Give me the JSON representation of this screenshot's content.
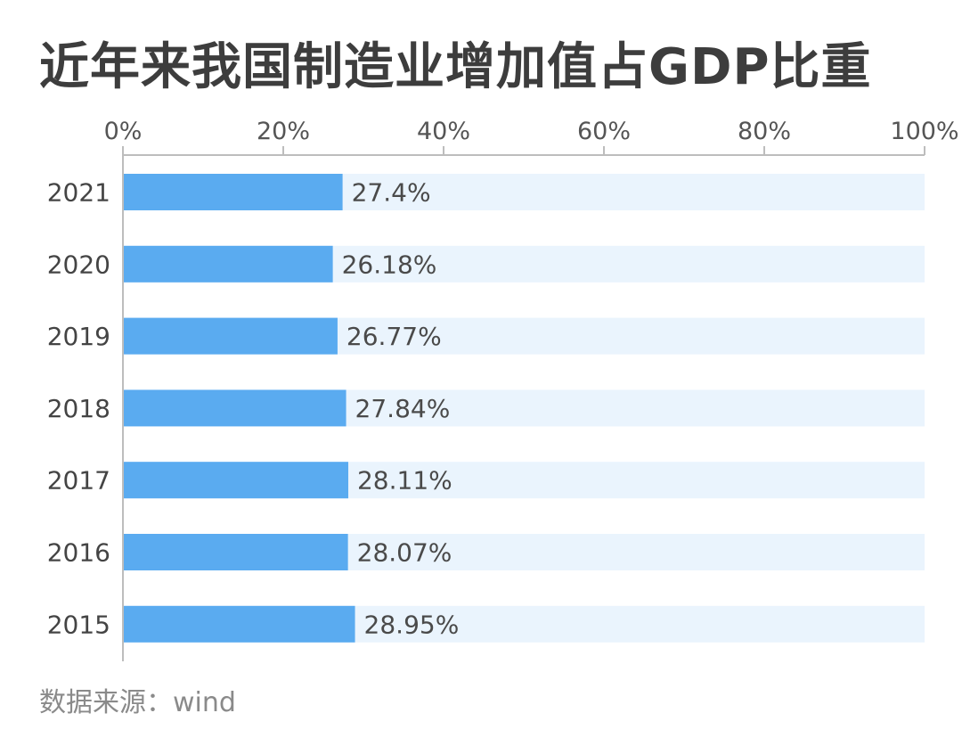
{
  "header": {
    "title": "近年来我国制造业增加值占GDP比重"
  },
  "footer": {
    "source": "数据来源：wind"
  },
  "chart_data": {
    "type": "bar",
    "orientation": "horizontal",
    "categories": [
      "2021",
      "2020",
      "2019",
      "2018",
      "2017",
      "2016",
      "2015"
    ],
    "values": [
      27.4,
      26.18,
      26.77,
      27.84,
      28.11,
      28.07,
      28.95
    ],
    "data_labels": [
      "27.4%",
      "26.18%",
      "26.77%",
      "27.84%",
      "28.11%",
      "28.07%",
      "28.95%"
    ],
    "x_ticks": [
      "0%",
      "20%",
      "40%",
      "60%",
      "80%",
      "100%"
    ],
    "xlim": [
      0,
      100
    ],
    "axis_position": "top",
    "grid": false,
    "colors": {
      "bar": "#5aabf0",
      "track": "#eaf4fd",
      "axis": "#bdbdbd"
    }
  }
}
